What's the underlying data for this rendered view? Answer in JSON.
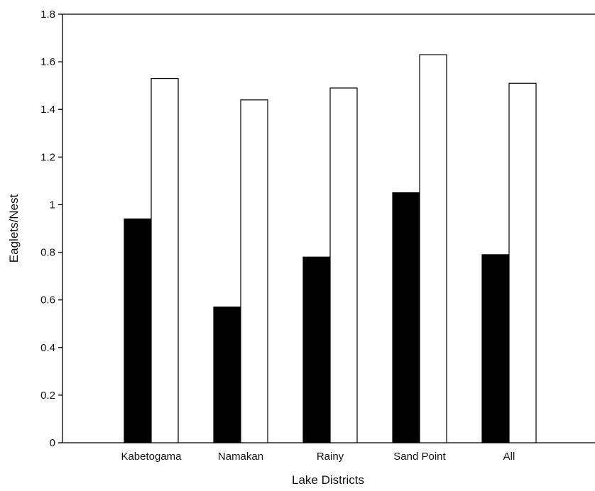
{
  "chart_data": {
    "type": "bar",
    "title": "",
    "xlabel": "Lake Districts",
    "ylabel": "Eaglets/Nest",
    "categories": [
      "Kabetogama",
      "Namakan",
      "Rainy",
      "Sand Point",
      "All"
    ],
    "series": [
      {
        "values": [
          0.94,
          0.57,
          0.78,
          1.05,
          0.79
        ],
        "color": "#000000"
      },
      {
        "values": [
          1.53,
          1.44,
          1.49,
          1.63,
          1.51
        ],
        "color": "#ffffff"
      }
    ],
    "ylim": [
      0,
      1.8
    ],
    "yticks": [
      "0",
      "0.2",
      "0.4",
      "0.6",
      "0.8",
      "1",
      "1.2",
      "1.4",
      "1.6",
      "1.8"
    ],
    "grid": false,
    "legend": "none"
  }
}
